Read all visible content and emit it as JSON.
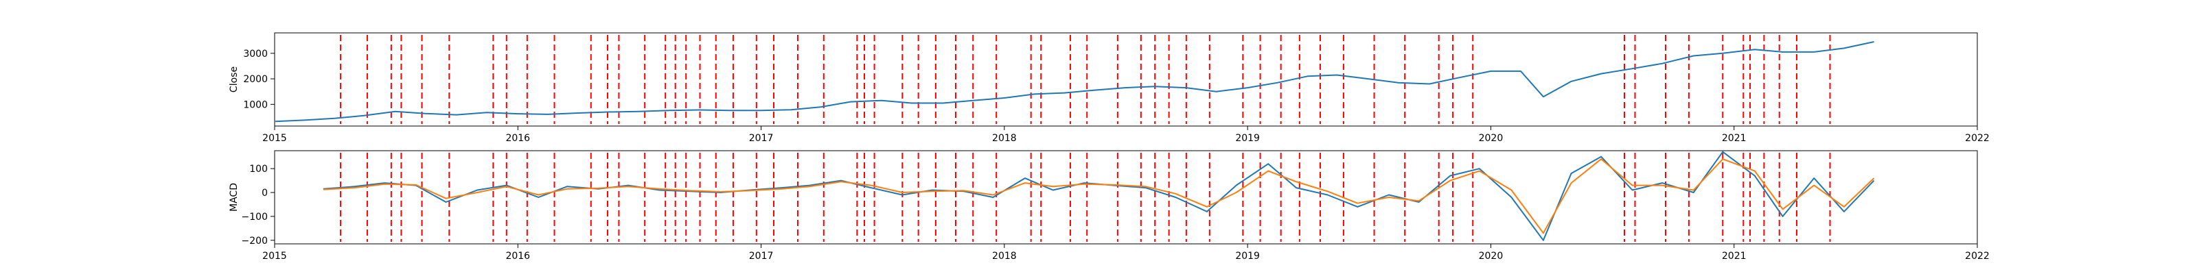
{
  "chart_data": [
    {
      "type": "line",
      "ylabel": "Close",
      "xlabel": "",
      "x_ticks": [
        "2015",
        "2016",
        "2017",
        "2018",
        "2019",
        "2020",
        "2021",
        "2022"
      ],
      "y_ticks": [
        1000,
        2000,
        3000
      ],
      "xlim": [
        "2015-01-01",
        "2022-01-01"
      ],
      "ylim": [
        150,
        3800
      ],
      "grid": false,
      "series": [
        {
          "color": "#1f77b4",
          "x": [
            "2015-01-02",
            "2015-02-15",
            "2015-04-01",
            "2015-05-15",
            "2015-07-01",
            "2015-08-15",
            "2015-10-01",
            "2015-11-15",
            "2016-01-01",
            "2016-02-15",
            "2016-04-01",
            "2016-05-15",
            "2016-07-01",
            "2016-08-15",
            "2016-10-01",
            "2016-11-15",
            "2017-01-01",
            "2017-02-15",
            "2017-04-01",
            "2017-05-15",
            "2017-07-01",
            "2017-08-15",
            "2017-10-01",
            "2017-11-15",
            "2018-01-01",
            "2018-02-15",
            "2018-04-01",
            "2018-05-15",
            "2018-07-01",
            "2018-08-15",
            "2018-10-01",
            "2018-11-15",
            "2019-01-01",
            "2019-02-15",
            "2019-04-01",
            "2019-05-15",
            "2019-07-01",
            "2019-08-15",
            "2019-10-01",
            "2019-11-15",
            "2020-01-01",
            "2020-02-15",
            "2020-03-20",
            "2020-05-01",
            "2020-06-15",
            "2020-08-01",
            "2020-09-15",
            "2020-11-01",
            "2020-12-15",
            "2021-02-01",
            "2021-03-15",
            "2021-05-01",
            "2021-06-15",
            "2021-07-30"
          ],
          "y": [
            330,
            380,
            450,
            560,
            720,
            640,
            590,
            680,
            630,
            610,
            660,
            700,
            720,
            760,
            780,
            760,
            760,
            790,
            900,
            1100,
            1150,
            1050,
            1050,
            1150,
            1250,
            1400,
            1450,
            1550,
            1650,
            1700,
            1650,
            1500,
            1650,
            1850,
            2100,
            2150,
            2000,
            1850,
            1800,
            2050,
            2300,
            2300,
            1300,
            1900,
            2200,
            2400,
            2600,
            2900,
            3000,
            3150,
            3050,
            3050,
            3200,
            3450
          ]
        }
      ]
    },
    {
      "type": "line",
      "ylabel": "MACD",
      "xlabel": "",
      "x_ticks": [
        "2015",
        "2016",
        "2017",
        "2018",
        "2019",
        "2020",
        "2021",
        "2022"
      ],
      "y_ticks": [
        -200,
        -100,
        0,
        100
      ],
      "xlim": [
        "2015-01-01",
        "2022-01-01"
      ],
      "ylim": [
        -215,
        175
      ],
      "grid": false,
      "series": [
        {
          "color": "#1f77b4",
          "x": [
            "2015-03-15",
            "2015-05-01",
            "2015-06-15",
            "2015-08-01",
            "2015-09-15",
            "2015-11-01",
            "2015-12-15",
            "2016-02-01",
            "2016-03-15",
            "2016-05-01",
            "2016-06-15",
            "2016-08-01",
            "2016-09-15",
            "2016-11-01",
            "2016-12-15",
            "2017-02-01",
            "2017-03-15",
            "2017-05-01",
            "2017-06-15",
            "2017-08-01",
            "2017-09-15",
            "2017-11-01",
            "2017-12-15",
            "2018-02-01",
            "2018-03-15",
            "2018-05-01",
            "2018-06-15",
            "2018-08-01",
            "2018-09-15",
            "2018-11-01",
            "2018-12-15",
            "2019-02-01",
            "2019-03-15",
            "2019-05-01",
            "2019-06-15",
            "2019-08-01",
            "2019-09-15",
            "2019-11-01",
            "2019-12-15",
            "2020-02-01",
            "2020-03-20",
            "2020-05-01",
            "2020-06-15",
            "2020-08-01",
            "2020-09-15",
            "2020-11-01",
            "2020-12-15",
            "2021-02-01",
            "2021-03-15",
            "2021-05-01",
            "2021-06-15",
            "2021-07-30"
          ],
          "y": [
            15,
            25,
            40,
            30,
            -40,
            10,
            30,
            -20,
            25,
            15,
            30,
            10,
            5,
            0,
            10,
            20,
            30,
            50,
            20,
            -10,
            10,
            5,
            -20,
            60,
            10,
            40,
            30,
            20,
            -20,
            -80,
            30,
            120,
            20,
            -10,
            -60,
            -10,
            -40,
            70,
            100,
            -20,
            -200,
            80,
            150,
            10,
            40,
            0,
            170,
            70,
            -100,
            60,
            -80,
            50
          ]
        },
        {
          "color": "#ff7f0e",
          "x": [
            "2015-03-15",
            "2015-05-01",
            "2015-06-15",
            "2015-08-01",
            "2015-09-15",
            "2015-11-01",
            "2015-12-15",
            "2016-02-01",
            "2016-03-15",
            "2016-05-01",
            "2016-06-15",
            "2016-08-01",
            "2016-09-15",
            "2016-11-01",
            "2016-12-15",
            "2017-02-01",
            "2017-03-15",
            "2017-05-01",
            "2017-06-15",
            "2017-08-01",
            "2017-09-15",
            "2017-11-01",
            "2017-12-15",
            "2018-02-01",
            "2018-03-15",
            "2018-05-01",
            "2018-06-15",
            "2018-08-01",
            "2018-09-15",
            "2018-11-01",
            "2018-12-15",
            "2019-02-01",
            "2019-03-15",
            "2019-05-01",
            "2019-06-15",
            "2019-08-01",
            "2019-09-15",
            "2019-11-01",
            "2019-12-15",
            "2020-02-01",
            "2020-03-20",
            "2020-05-01",
            "2020-06-15",
            "2020-08-01",
            "2020-09-15",
            "2020-11-01",
            "2020-12-15",
            "2021-02-01",
            "2021-03-15",
            "2021-05-01",
            "2021-06-15",
            "2021-07-30"
          ],
          "y": [
            12,
            20,
            35,
            32,
            -25,
            0,
            25,
            -10,
            15,
            18,
            25,
            15,
            8,
            3,
            8,
            15,
            25,
            45,
            30,
            0,
            5,
            8,
            -10,
            40,
            25,
            35,
            32,
            25,
            -5,
            -60,
            0,
            90,
            45,
            5,
            -45,
            -20,
            -35,
            50,
            90,
            10,
            -170,
            40,
            140,
            30,
            30,
            10,
            140,
            90,
            -70,
            30,
            -60,
            60
          ]
        }
      ]
    }
  ],
  "event_lines": {
    "color": "#ff0000",
    "dates": [
      "2015-04-10",
      "2015-05-20",
      "2015-06-25",
      "2015-07-10",
      "2015-08-10",
      "2015-09-20",
      "2015-11-25",
      "2015-12-15",
      "2016-01-15",
      "2016-02-25",
      "2016-04-20",
      "2016-05-15",
      "2016-06-01",
      "2016-07-10",
      "2016-08-10",
      "2016-08-25",
      "2016-09-10",
      "2016-10-01",
      "2016-10-25",
      "2016-11-20",
      "2016-12-25",
      "2017-01-20",
      "2017-02-25",
      "2017-04-05",
      "2017-05-25",
      "2017-06-05",
      "2017-06-20",
      "2017-08-01",
      "2017-08-25",
      "2017-09-20",
      "2017-10-20",
      "2017-11-15",
      "2017-12-20",
      "2018-02-10",
      "2018-02-25",
      "2018-04-10",
      "2018-05-05",
      "2018-06-20",
      "2018-07-25",
      "2018-08-15",
      "2018-09-05",
      "2018-10-01",
      "2018-11-05",
      "2018-12-25",
      "2019-01-20",
      "2019-02-20",
      "2019-03-20",
      "2019-04-20",
      "2019-05-25",
      "2019-07-10",
      "2019-08-25",
      "2019-10-15",
      "2019-11-05",
      "2019-12-05",
      "2020-07-20",
      "2020-08-05",
      "2020-09-20",
      "2020-10-25",
      "2020-12-15",
      "2021-01-15",
      "2021-01-25",
      "2021-02-15",
      "2021-03-10",
      "2021-04-05",
      "2021-05-25"
    ]
  },
  "colors": {
    "close": "#1f77b4",
    "macd": "#1f77b4",
    "signal": "#ff7f0e",
    "events": "#ff0000"
  }
}
